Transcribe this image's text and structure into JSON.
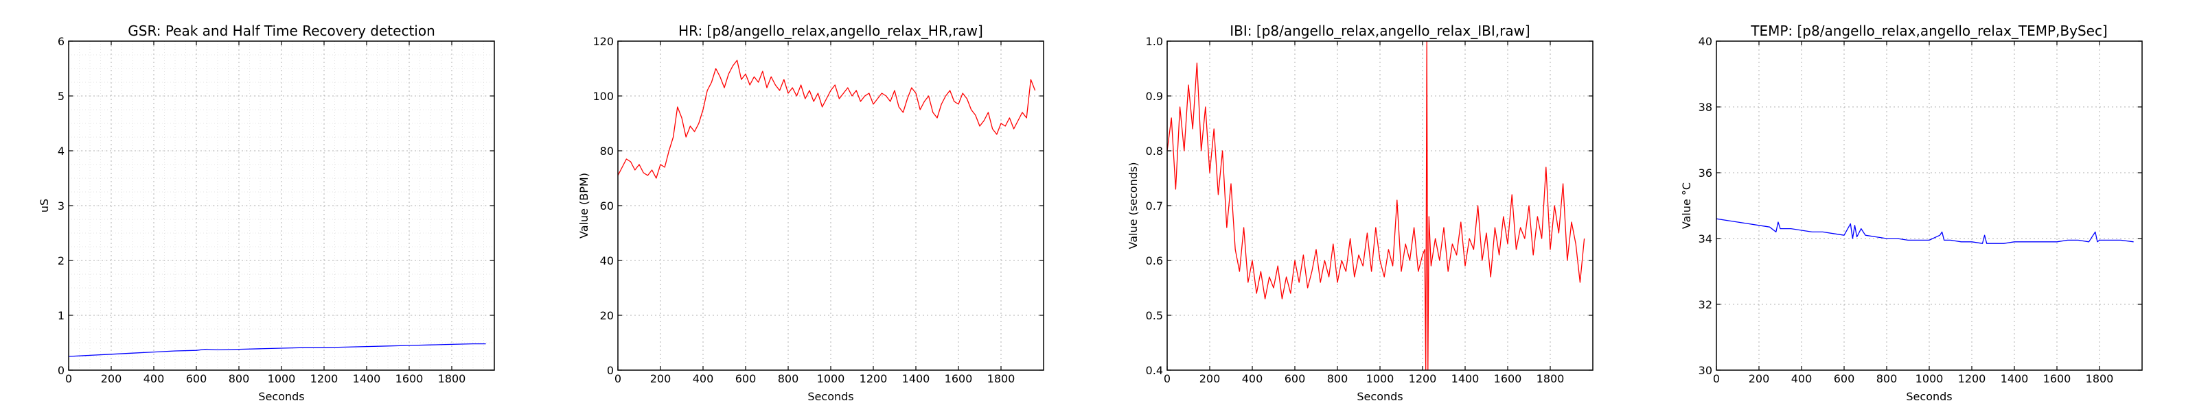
{
  "chart_data": [
    {
      "type": "line",
      "title": "GSR: Peak and Half Time Recovery detection",
      "xlabel": "Seconds",
      "ylabel": "uS",
      "xlim": [
        0,
        2000
      ],
      "ylim": [
        0,
        6
      ],
      "xticks": [
        0,
        200,
        400,
        600,
        800,
        1000,
        1200,
        1400,
        1600,
        1800
      ],
      "yticks": [
        0,
        1,
        2,
        3,
        4,
        5,
        6
      ],
      "tick_decimals": 0,
      "grid": true,
      "minor_grid": true,
      "color": "#0000ff",
      "series": [
        {
          "x": [
            0,
            100,
            200,
            300,
            400,
            500,
            600,
            640,
            700,
            800,
            900,
            1000,
            1100,
            1200,
            1300,
            1400,
            1500,
            1600,
            1700,
            1800,
            1900,
            1960
          ],
          "y": [
            0.25,
            0.27,
            0.29,
            0.31,
            0.33,
            0.35,
            0.36,
            0.38,
            0.37,
            0.38,
            0.39,
            0.4,
            0.41,
            0.41,
            0.42,
            0.43,
            0.44,
            0.45,
            0.46,
            0.47,
            0.48,
            0.48
          ]
        }
      ]
    },
    {
      "type": "line",
      "title": "HR: [p8/angello_relax,angello_relax_HR,raw]",
      "xlabel": "Seconds",
      "ylabel": "Value (BPM)",
      "xlim": [
        0,
        2000
      ],
      "ylim": [
        0,
        120
      ],
      "xticks": [
        0,
        200,
        400,
        600,
        800,
        1000,
        1200,
        1400,
        1600,
        1800
      ],
      "yticks": [
        0,
        20,
        40,
        60,
        80,
        100,
        120
      ],
      "tick_decimals": 0,
      "grid": true,
      "minor_grid": false,
      "color": "#ff0000",
      "series": [
        {
          "x": [
            0,
            20,
            40,
            60,
            80,
            100,
            120,
            140,
            160,
            180,
            200,
            220,
            240,
            260,
            280,
            300,
            320,
            340,
            360,
            380,
            400,
            420,
            440,
            460,
            480,
            500,
            520,
            540,
            560,
            580,
            600,
            620,
            640,
            660,
            680,
            700,
            720,
            740,
            760,
            780,
            800,
            820,
            840,
            860,
            880,
            900,
            920,
            940,
            960,
            980,
            1000,
            1020,
            1040,
            1060,
            1080,
            1100,
            1120,
            1140,
            1160,
            1180,
            1200,
            1220,
            1240,
            1260,
            1280,
            1300,
            1320,
            1340,
            1360,
            1380,
            1400,
            1420,
            1440,
            1460,
            1480,
            1500,
            1520,
            1540,
            1560,
            1580,
            1600,
            1620,
            1640,
            1660,
            1680,
            1700,
            1720,
            1740,
            1760,
            1780,
            1800,
            1820,
            1840,
            1860,
            1880,
            1900,
            1920,
            1940,
            1960
          ],
          "y": [
            71,
            74,
            77,
            76,
            73,
            75,
            72,
            71,
            73,
            70,
            75,
            74,
            80,
            85,
            96,
            92,
            85,
            89,
            87,
            90,
            95,
            102,
            105,
            110,
            107,
            103,
            108,
            111,
            113,
            106,
            108,
            104,
            107,
            105,
            109,
            103,
            107,
            104,
            102,
            106,
            101,
            103,
            100,
            104,
            99,
            102,
            98,
            101,
            96,
            99,
            102,
            104,
            99,
            101,
            103,
            100,
            102,
            98,
            100,
            101,
            97,
            99,
            101,
            100,
            98,
            102,
            96,
            94,
            99,
            103,
            101,
            95,
            98,
            100,
            94,
            92,
            97,
            100,
            102,
            98,
            97,
            101,
            99,
            95,
            93,
            89,
            91,
            94,
            88,
            86,
            90,
            89,
            92,
            88,
            91,
            94,
            92,
            106,
            102
          ]
        }
      ]
    },
    {
      "type": "line",
      "title": "IBI: [p8/angello_relax,angello_relax_IBI,raw]",
      "xlabel": "Seconds",
      "ylabel": "Value (seconds)",
      "xlim": [
        0,
        2000
      ],
      "ylim": [
        0.4,
        1.0
      ],
      "xticks": [
        0,
        200,
        400,
        600,
        800,
        1000,
        1200,
        1400,
        1600,
        1800
      ],
      "yticks": [
        0.4,
        0.5,
        0.6,
        0.7,
        0.8,
        0.9,
        1.0
      ],
      "tick_decimals": 1,
      "grid": true,
      "minor_grid": false,
      "color": "#ff0000",
      "series": [
        {
          "x": [
            0,
            20,
            40,
            60,
            80,
            100,
            120,
            140,
            160,
            180,
            200,
            220,
            240,
            260,
            280,
            300,
            320,
            340,
            360,
            380,
            400,
            420,
            440,
            460,
            480,
            500,
            520,
            540,
            560,
            580,
            600,
            620,
            640,
            660,
            680,
            700,
            720,
            740,
            760,
            780,
            800,
            820,
            840,
            860,
            880,
            900,
            920,
            940,
            960,
            980,
            1000,
            1020,
            1040,
            1060,
            1080,
            1100,
            1120,
            1140,
            1160,
            1180,
            1200,
            1210,
            1215,
            1220,
            1225,
            1230,
            1240,
            1260,
            1280,
            1300,
            1320,
            1340,
            1360,
            1380,
            1400,
            1420,
            1440,
            1460,
            1480,
            1500,
            1520,
            1540,
            1560,
            1580,
            1600,
            1620,
            1640,
            1660,
            1680,
            1700,
            1720,
            1740,
            1760,
            1780,
            1800,
            1820,
            1840,
            1860,
            1880,
            1900,
            1920,
            1940,
            1960
          ],
          "y": [
            0.8,
            0.86,
            0.73,
            0.88,
            0.8,
            0.92,
            0.84,
            0.96,
            0.8,
            0.88,
            0.76,
            0.84,
            0.72,
            0.8,
            0.66,
            0.74,
            0.62,
            0.58,
            0.66,
            0.56,
            0.6,
            0.54,
            0.58,
            0.53,
            0.57,
            0.55,
            0.59,
            0.53,
            0.57,
            0.54,
            0.6,
            0.56,
            0.61,
            0.55,
            0.58,
            0.62,
            0.56,
            0.6,
            0.57,
            0.63,
            0.56,
            0.6,
            0.58,
            0.64,
            0.57,
            0.61,
            0.59,
            0.65,
            0.58,
            0.66,
            0.6,
            0.57,
            0.62,
            0.59,
            0.71,
            0.58,
            0.63,
            0.6,
            0.66,
            0.58,
            0.61,
            0.62,
            0.4,
            1.0,
            0.4,
            0.68,
            0.59,
            0.64,
            0.6,
            0.66,
            0.58,
            0.63,
            0.61,
            0.67,
            0.59,
            0.64,
            0.62,
            0.7,
            0.6,
            0.65,
            0.57,
            0.66,
            0.61,
            0.68,
            0.63,
            0.72,
            0.62,
            0.66,
            0.64,
            0.7,
            0.61,
            0.68,
            0.64,
            0.77,
            0.62,
            0.7,
            0.65,
            0.74,
            0.6,
            0.67,
            0.63,
            0.56,
            0.64
          ]
        }
      ]
    },
    {
      "type": "line",
      "title": "TEMP: [p8/angello_relax,angello_relax_TEMP,BySec]",
      "xlabel": "Seconds",
      "ylabel": "Value °C",
      "xlim": [
        0,
        2000
      ],
      "ylim": [
        30,
        40
      ],
      "xticks": [
        0,
        200,
        400,
        600,
        800,
        1000,
        1200,
        1400,
        1600,
        1800
      ],
      "yticks": [
        30,
        32,
        34,
        36,
        38,
        40
      ],
      "tick_decimals": 0,
      "grid": true,
      "minor_grid": false,
      "color": "#0000ff",
      "series": [
        {
          "x": [
            0,
            50,
            100,
            150,
            200,
            250,
            280,
            290,
            300,
            350,
            400,
            450,
            500,
            550,
            600,
            630,
            640,
            650,
            660,
            680,
            700,
            750,
            800,
            850,
            900,
            950,
            1000,
            1050,
            1060,
            1070,
            1100,
            1150,
            1200,
            1250,
            1260,
            1270,
            1300,
            1350,
            1400,
            1450,
            1500,
            1550,
            1600,
            1650,
            1700,
            1750,
            1780,
            1790,
            1800,
            1850,
            1900,
            1960
          ],
          "y": [
            34.6,
            34.55,
            34.5,
            34.45,
            34.4,
            34.35,
            34.2,
            34.5,
            34.3,
            34.3,
            34.25,
            34.2,
            34.2,
            34.15,
            34.1,
            34.45,
            34.0,
            34.4,
            34.05,
            34.3,
            34.1,
            34.05,
            34.0,
            34.0,
            33.95,
            33.95,
            33.95,
            34.1,
            34.2,
            33.95,
            33.95,
            33.9,
            33.9,
            33.85,
            34.1,
            33.85,
            33.85,
            33.85,
            33.9,
            33.9,
            33.9,
            33.9,
            33.9,
            33.95,
            33.95,
            33.9,
            34.2,
            33.9,
            33.95,
            33.95,
            33.95,
            33.9
          ]
        }
      ]
    }
  ]
}
